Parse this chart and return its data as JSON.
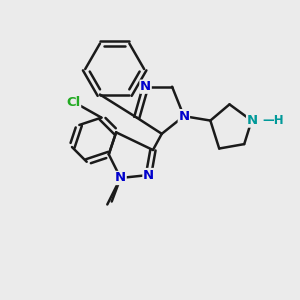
{
  "background_color": "#ebebeb",
  "bond_color": "#1a1a1a",
  "N_color": "#0000cc",
  "Cl_color": "#22aa22",
  "NH_color": "#009999",
  "figsize": [
    3.0,
    3.0
  ],
  "dpi": 100,
  "xlim": [
    0,
    10
  ],
  "ylim": [
    0,
    10
  ]
}
